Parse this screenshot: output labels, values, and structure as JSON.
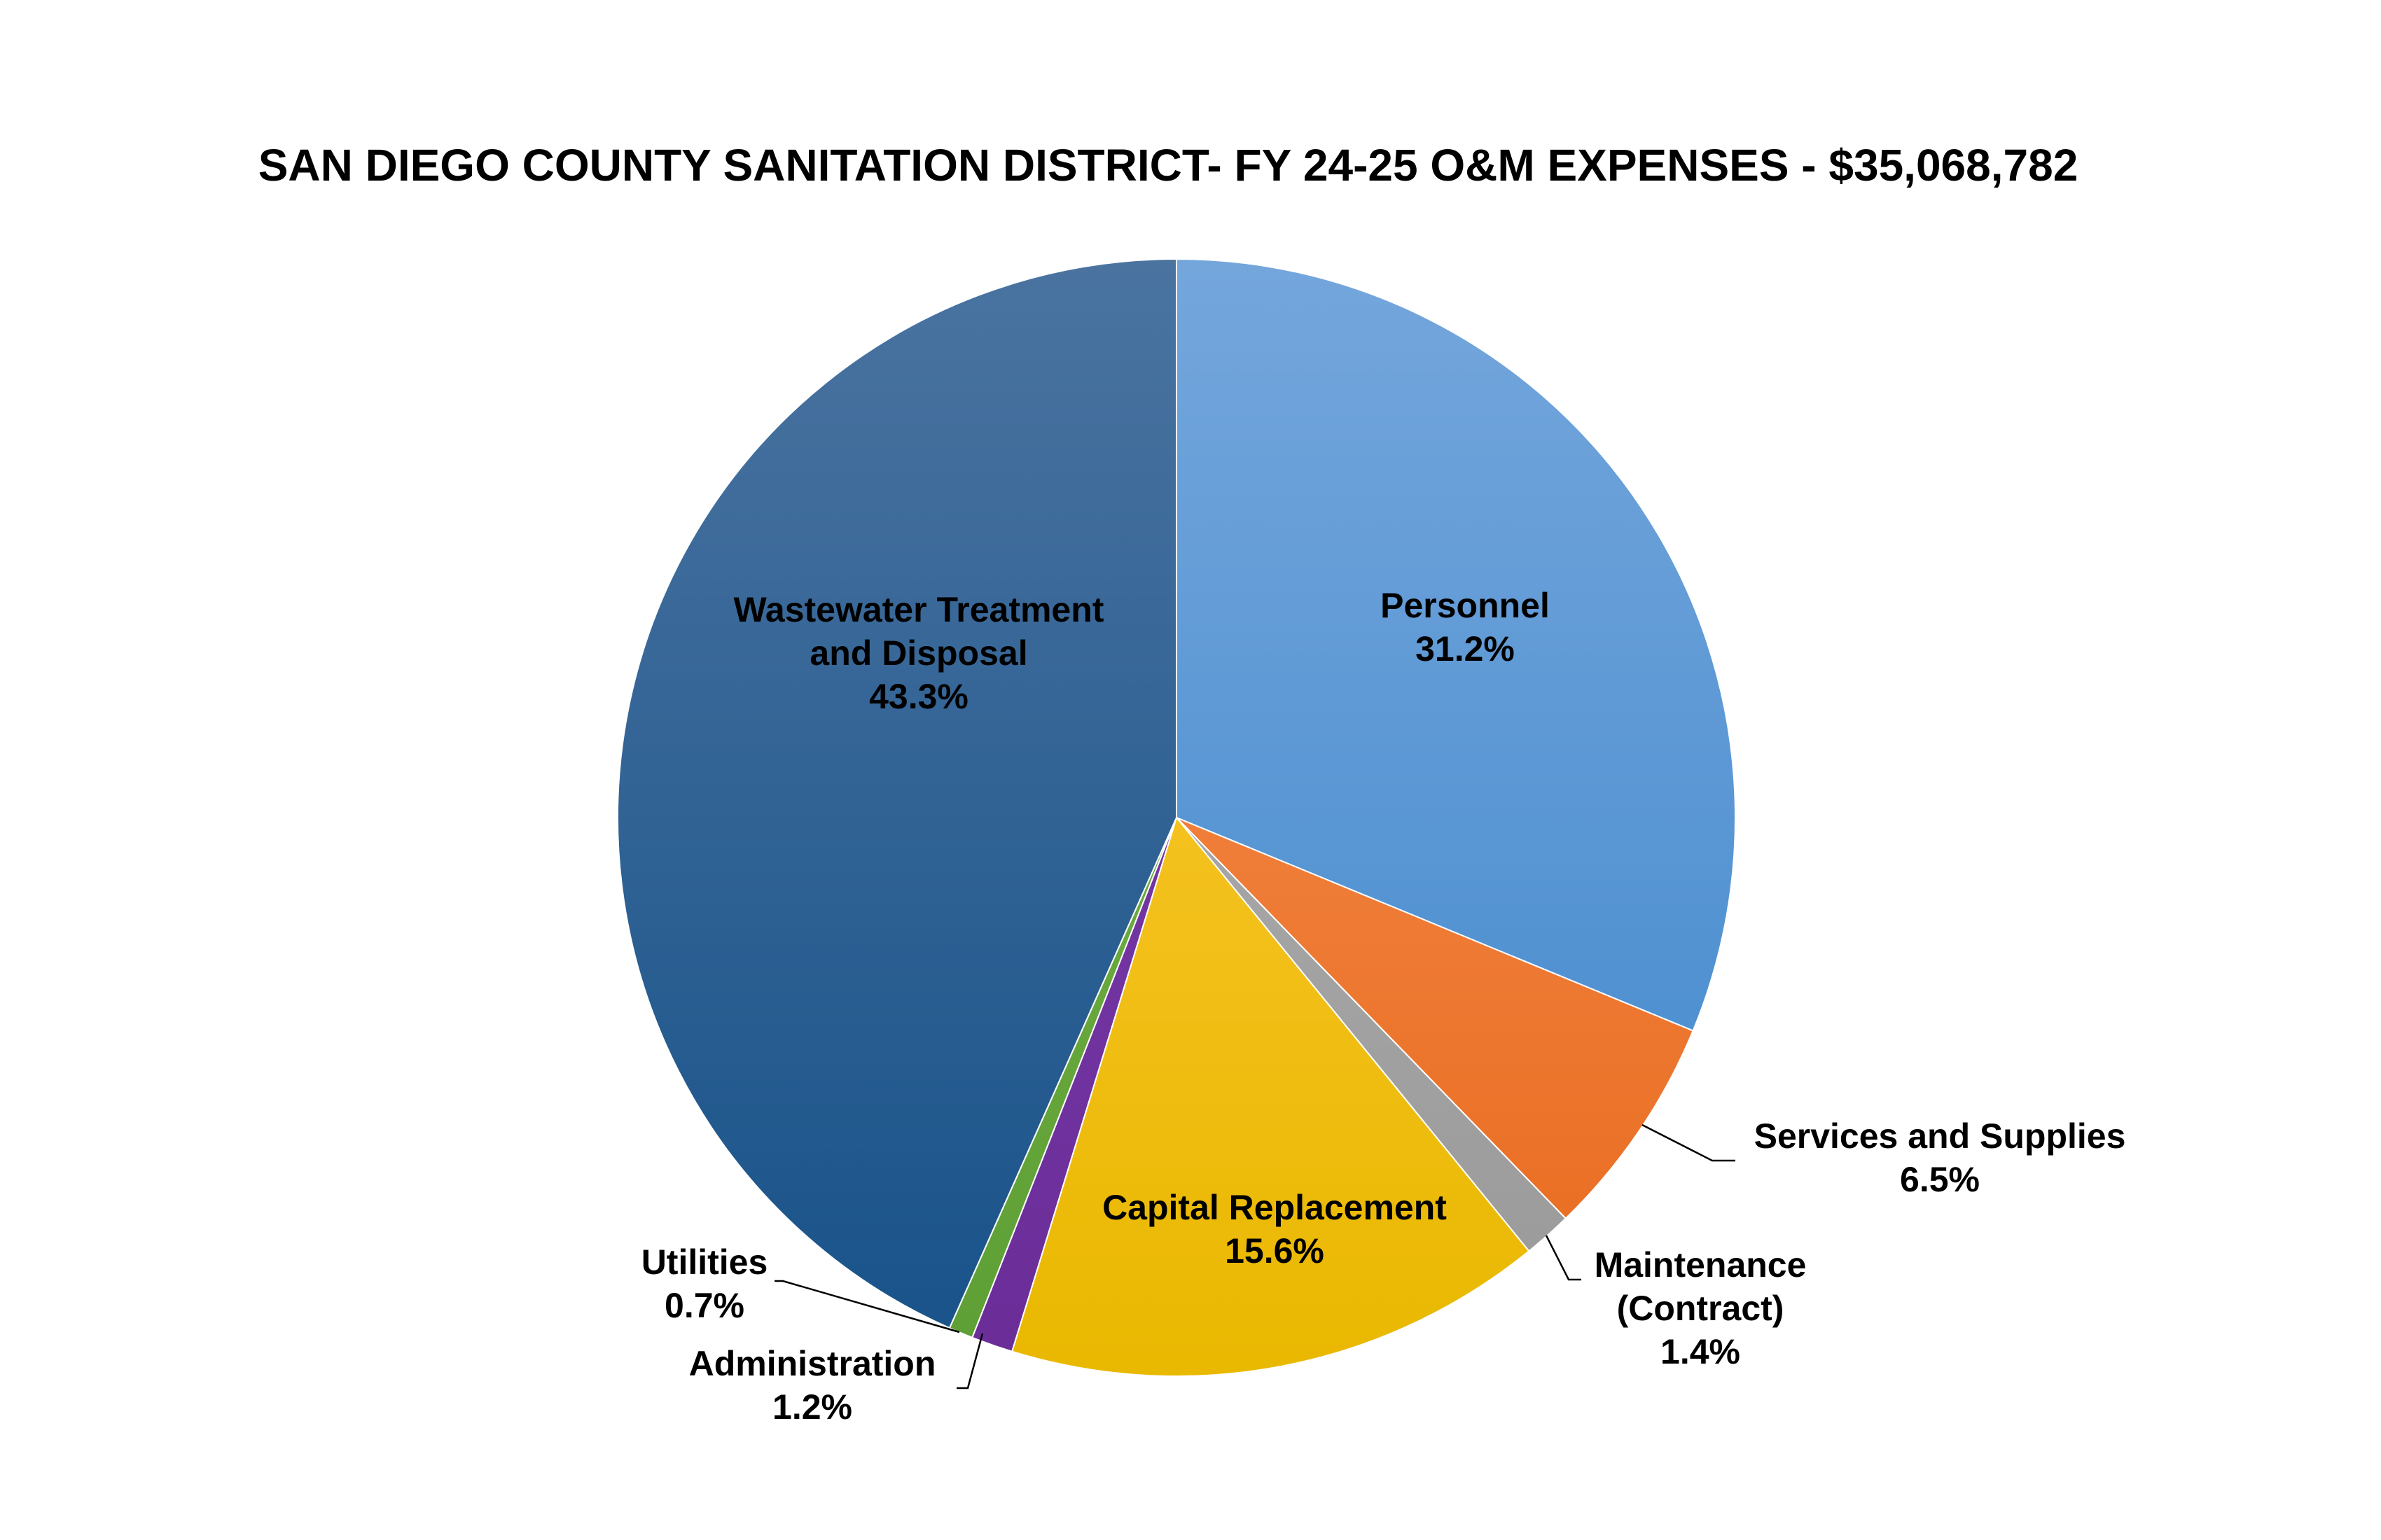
{
  "chart_data": {
    "type": "pie",
    "title": "SAN DIEGO COUNTY SANITATION DISTRICT- FY 24-25 O&M EXPENSES - $35,068,782",
    "start": "12 o'clock",
    "direction": "clockwise",
    "slices": [
      {
        "key": "personnel",
        "label_lines": [
          "Personnel"
        ],
        "value_label": "31.2%",
        "value": 31.2,
        "color_light": "#74a6dc",
        "color_dark": "#3f87cc",
        "label_style": "inside"
      },
      {
        "key": "services",
        "label_lines": [
          "Services and Supplies"
        ],
        "value_label": "6.5%",
        "value": 6.5,
        "color_light": "#f79256",
        "color_dark": "#e86a1d",
        "label_style": "callout"
      },
      {
        "key": "maintenance",
        "label_lines": [
          "Maintenance",
          "(Contract)"
        ],
        "value_label": "1.4%",
        "value": 1.4,
        "color_light": "#b3b3b3",
        "color_dark": "#999999",
        "label_style": "callout"
      },
      {
        "key": "capital",
        "label_lines": [
          "Capital Replacement"
        ],
        "value_label": "15.6%",
        "value": 15.6,
        "color_light": "#ffcb3d",
        "color_dark": "#e9b800",
        "label_style": "inside"
      },
      {
        "key": "administration",
        "label_lines": [
          "Administration"
        ],
        "value_label": "1.2%",
        "value": 1.2,
        "color_light": "#7f3fae",
        "color_dark": "#6a2d98",
        "label_style": "callout"
      },
      {
        "key": "utilities",
        "label_lines": [
          "Utilities"
        ],
        "value_label": "0.7%",
        "value": 0.7,
        "color_light": "#77b64a",
        "color_dark": "#5e9f35",
        "label_style": "callout"
      },
      {
        "key": "wastewater",
        "label_lines": [
          "Wastewater Treatment",
          "and Disposal"
        ],
        "value_label": "43.3%",
        "value": 43.3,
        "color_light": "#4a73a0",
        "color_dark": "#175289",
        "label_style": "inside"
      }
    ]
  }
}
